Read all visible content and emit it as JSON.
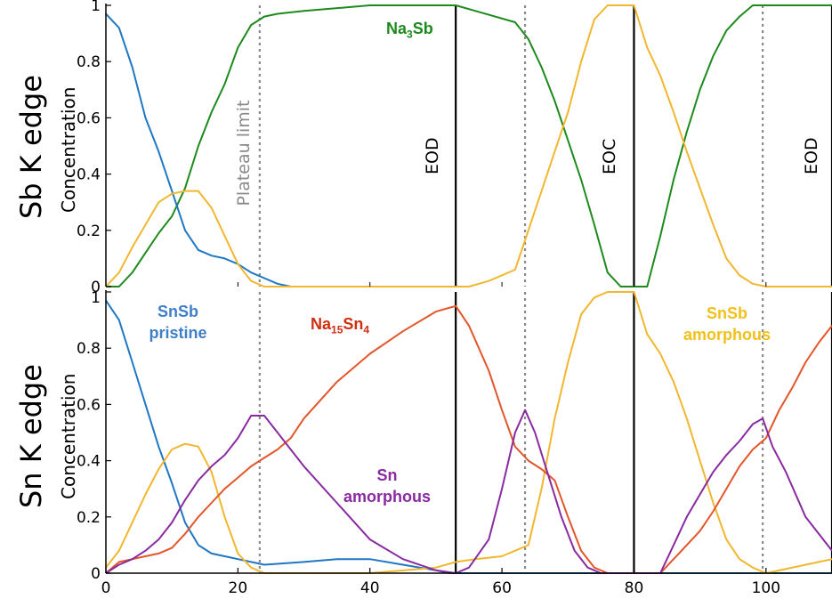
{
  "chart_data": [
    {
      "type": "line",
      "panel": "top",
      "edge_label": "Sb K edge",
      "ylabel": "Concentration",
      "xlim": [
        0,
        110
      ],
      "ylim": [
        0,
        1
      ],
      "yticks": [
        0,
        0.2,
        0.4,
        0.6,
        0.8,
        1
      ],
      "ytick_labels": [
        "0",
        "0.2",
        "0.4",
        "0.6",
        "0.8",
        "1"
      ],
      "series": [
        {
          "name": "Na3Sb",
          "color": "#1e8a1e",
          "x": [
            0,
            2,
            4,
            6,
            8,
            10,
            12,
            14,
            16,
            18,
            20,
            22,
            24,
            26,
            30,
            40,
            50,
            53,
            56,
            62,
            64,
            66,
            68,
            70,
            72,
            74,
            76,
            78,
            80,
            82,
            84,
            86,
            88,
            90,
            92,
            94,
            96,
            98,
            100,
            105,
            110
          ],
          "y": [
            0,
            0,
            0.05,
            0.12,
            0.19,
            0.25,
            0.35,
            0.5,
            0.62,
            0.72,
            0.85,
            0.93,
            0.96,
            0.97,
            0.98,
            1,
            1,
            1,
            0.98,
            0.94,
            0.88,
            0.78,
            0.66,
            0.52,
            0.38,
            0.22,
            0.05,
            0,
            0,
            0,
            0.18,
            0.38,
            0.55,
            0.7,
            0.82,
            0.91,
            0.96,
            1,
            1,
            1,
            1
          ]
        },
        {
          "name": "SnSb",
          "color": "#1f77c4",
          "x": [
            0,
            2,
            4,
            6,
            8,
            10,
            12,
            14,
            16,
            18,
            20,
            22,
            24,
            26,
            28,
            30
          ],
          "y": [
            0.97,
            0.92,
            0.78,
            0.6,
            0.48,
            0.34,
            0.2,
            0.13,
            0.11,
            0.1,
            0.08,
            0.05,
            0.03,
            0.01,
            0,
            0
          ]
        },
        {
          "name": "amorphous SnSb",
          "color": "#f0b72f",
          "x": [
            0,
            2,
            4,
            6,
            8,
            10,
            12,
            14,
            16,
            18,
            20,
            22,
            24,
            30,
            40,
            55,
            58,
            62,
            64,
            66,
            68,
            70,
            72,
            74,
            76,
            78,
            80,
            82,
            84,
            86,
            88,
            90,
            92,
            94,
            96,
            98,
            100,
            105,
            110
          ],
          "y": [
            0,
            0.05,
            0.14,
            0.22,
            0.3,
            0.33,
            0.34,
            0.34,
            0.28,
            0.18,
            0.08,
            0.02,
            0,
            0,
            0,
            0,
            0.02,
            0.06,
            0.2,
            0.34,
            0.48,
            0.62,
            0.8,
            0.95,
            1,
            1,
            1,
            0.85,
            0.75,
            0.62,
            0.48,
            0.35,
            0.22,
            0.1,
            0.04,
            0.01,
            0,
            0,
            0
          ]
        }
      ],
      "annotations": [
        {
          "text_base": "Na",
          "sub1": "3",
          "text_rest": "Sb",
          "color": "#1e8a1e"
        }
      ],
      "vlines": [
        {
          "x": 23.3,
          "style": "dotted",
          "label": "Plateau limit",
          "color": "#8a8a8a"
        },
        {
          "x": 53,
          "style": "solid",
          "label": "EOD",
          "color": "#000000"
        },
        {
          "x": 63.5,
          "style": "dotted",
          "label": "",
          "color": "#8a8a8a"
        },
        {
          "x": 80,
          "style": "solid",
          "label": "EOC",
          "color": "#000000"
        },
        {
          "x": 99.5,
          "style": "dotted",
          "label": "",
          "color": "#8a8a8a"
        },
        {
          "x": 110,
          "style": "solid",
          "label": "EOD",
          "color": "#000000"
        }
      ]
    },
    {
      "type": "line",
      "panel": "bottom",
      "edge_label": "Sn K edge",
      "ylabel": "Concentration",
      "xlim": [
        0,
        110
      ],
      "ylim": [
        0,
        1
      ],
      "xticks": [
        0,
        20,
        40,
        60,
        80,
        100
      ],
      "xtick_labels": [
        "0",
        "20",
        "40",
        "60",
        "80",
        "100"
      ],
      "yticks": [
        0,
        0.2,
        0.4,
        0.6,
        0.8
      ],
      "ytick_labels": [
        "0",
        "0.2",
        "0.4",
        "0.6",
        "0.8"
      ],
      "corner_tick_label": "1",
      "series": [
        {
          "name": "SnSb pristine",
          "color": "#1f77c4",
          "x": [
            0,
            2,
            4,
            6,
            8,
            10,
            12,
            14,
            16,
            18,
            20,
            22,
            24,
            30,
            35,
            40,
            45,
            50,
            52,
            55,
            60,
            70,
            80,
            90,
            100,
            110
          ],
          "y": [
            0.97,
            0.9,
            0.75,
            0.6,
            0.45,
            0.32,
            0.18,
            0.1,
            0.07,
            0.06,
            0.05,
            0.04,
            0.03,
            0.04,
            0.05,
            0.05,
            0.03,
            0.01,
            0,
            0,
            0,
            0,
            0,
            0,
            0,
            0
          ]
        },
        {
          "name": "amorphous SnSb",
          "color": "#f0b72f",
          "x": [
            0,
            2,
            4,
            6,
            8,
            10,
            12,
            14,
            16,
            18,
            20,
            22,
            24,
            30,
            40,
            50,
            53,
            56,
            60,
            62,
            64,
            66,
            68,
            70,
            72,
            74,
            76,
            78,
            80,
            82,
            84,
            86,
            88,
            90,
            92,
            94,
            96,
            98,
            100,
            104,
            108,
            110
          ],
          "y": [
            0.02,
            0.08,
            0.18,
            0.28,
            0.37,
            0.44,
            0.46,
            0.45,
            0.36,
            0.2,
            0.07,
            0.02,
            0,
            0,
            0,
            0.02,
            0.04,
            0.05,
            0.06,
            0.08,
            0.1,
            0.3,
            0.55,
            0.75,
            0.92,
            0.98,
            1,
            1,
            1,
            0.85,
            0.78,
            0.68,
            0.55,
            0.4,
            0.25,
            0.12,
            0.05,
            0.02,
            0,
            0.02,
            0.04,
            0.05
          ]
        },
        {
          "name": "Na15Sn4",
          "color": "#e2562a",
          "x": [
            0,
            2,
            4,
            6,
            8,
            10,
            12,
            14,
            16,
            18,
            20,
            22,
            24,
            26,
            28,
            30,
            35,
            40,
            45,
            50,
            53,
            55,
            58,
            60,
            62,
            64,
            66,
            68,
            70,
            72,
            74,
            76,
            78,
            80,
            82,
            84,
            86,
            88,
            90,
            92,
            94,
            96,
            98,
            100,
            102,
            104,
            106,
            108,
            110
          ],
          "y": [
            0,
            0.04,
            0.05,
            0.06,
            0.07,
            0.09,
            0.14,
            0.2,
            0.25,
            0.3,
            0.34,
            0.38,
            0.41,
            0.44,
            0.48,
            0.55,
            0.68,
            0.78,
            0.86,
            0.93,
            0.95,
            0.88,
            0.72,
            0.58,
            0.45,
            0.4,
            0.37,
            0.33,
            0.2,
            0.08,
            0.02,
            0,
            0,
            0,
            0,
            0,
            0.05,
            0.1,
            0.15,
            0.22,
            0.3,
            0.38,
            0.44,
            0.48,
            0.58,
            0.66,
            0.75,
            0.82,
            0.88
          ]
        },
        {
          "name": "Sn amorphous",
          "color": "#8a2aa0",
          "x": [
            0,
            2,
            4,
            6,
            8,
            10,
            12,
            14,
            16,
            18,
            20,
            22,
            24,
            26,
            28,
            30,
            35,
            40,
            45,
            50,
            53,
            55,
            58,
            60,
            62,
            63.5,
            65,
            67,
            69,
            71,
            73,
            75,
            80,
            84,
            86,
            88,
            90,
            92,
            94,
            96,
            98,
            99.5,
            101,
            103,
            106,
            110
          ],
          "y": [
            0,
            0.03,
            0.05,
            0.08,
            0.12,
            0.18,
            0.26,
            0.33,
            0.38,
            0.42,
            0.48,
            0.56,
            0.56,
            0.5,
            0.44,
            0.38,
            0.25,
            0.12,
            0.05,
            0.01,
            0,
            0.02,
            0.12,
            0.3,
            0.5,
            0.58,
            0.5,
            0.35,
            0.2,
            0.08,
            0.02,
            0,
            0,
            0,
            0.1,
            0.2,
            0.28,
            0.36,
            0.42,
            0.47,
            0.53,
            0.55,
            0.45,
            0.36,
            0.2,
            0.08
          ]
        }
      ],
      "annotations": [
        {
          "lines": [
            "SnSb",
            "pristine"
          ],
          "color": "#3f7fc7"
        },
        {
          "text_base": "Na",
          "sub1": "15",
          "text_mid": "Sn",
          "sub2": "4",
          "color": "#d02e10"
        },
        {
          "lines": [
            "Sn",
            "amorphous"
          ],
          "color": "#8a2aa0"
        },
        {
          "lines": [
            "SnSb",
            "amorphous"
          ],
          "color": "#f2c01a"
        }
      ],
      "vlines": [
        {
          "x": 23.3,
          "style": "dotted",
          "color": "#8a8a8a"
        },
        {
          "x": 53,
          "style": "solid",
          "color": "#000000"
        },
        {
          "x": 63.5,
          "style": "dotted",
          "color": "#8a8a8a"
        },
        {
          "x": 80,
          "style": "solid",
          "color": "#000000"
        },
        {
          "x": 99.5,
          "style": "dotted",
          "color": "#8a8a8a"
        },
        {
          "x": 110,
          "style": "solid",
          "color": "#000000"
        }
      ]
    }
  ]
}
